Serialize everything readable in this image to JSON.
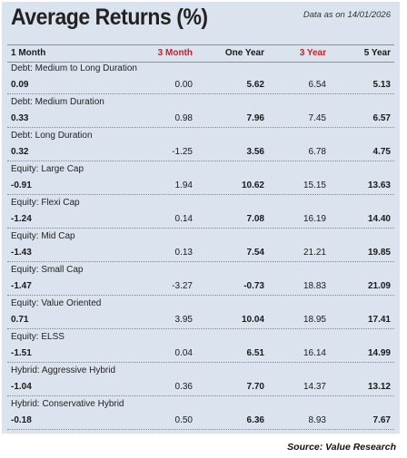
{
  "title": "Average Returns (%)",
  "as_of": "Data as on 14/01/2026",
  "columns": [
    "1 Month",
    "3 Month",
    "One Year",
    "3 Year",
    "5 Year"
  ],
  "rows": [
    {
      "category": "Debt: Medium to Long Duration",
      "values": [
        "0.09",
        "0.00",
        "5.62",
        "6.54",
        "5.13"
      ]
    },
    {
      "category": "Debt: Medium Duration",
      "values": [
        "0.33",
        "0.98",
        "7.96",
        "7.45",
        "6.57"
      ]
    },
    {
      "category": "Debt: Long Duration",
      "values": [
        "0.32",
        "-1.25",
        "3.56",
        "6.78",
        "4.75"
      ]
    },
    {
      "category": "Equity: Large Cap",
      "values": [
        "-0.91",
        "1.94",
        "10.62",
        "15.15",
        "13.63"
      ]
    },
    {
      "category": "Equity: Flexi Cap",
      "values": [
        "-1.24",
        "0.14",
        "7.08",
        "16.19",
        "14.40"
      ]
    },
    {
      "category": "Equity: Mid Cap",
      "values": [
        "-1.43",
        "0.13",
        "7.54",
        "21.21",
        "19.85"
      ]
    },
    {
      "category": "Equity: Small Cap",
      "values": [
        "-1.47",
        "-3.27",
        "-0.73",
        "18.83",
        "21.09"
      ]
    },
    {
      "category": "Equity: Value Oriented",
      "values": [
        "0.71",
        "3.95",
        "10.04",
        "18.95",
        "17.41"
      ]
    },
    {
      "category": "Equity: ELSS",
      "values": [
        "-1.51",
        "0.04",
        "6.51",
        "16.14",
        "14.99"
      ]
    },
    {
      "category": "Hybrid: Aggressive Hybrid",
      "values": [
        "-1.04",
        "0.36",
        "7.70",
        "14.37",
        "13.12"
      ]
    },
    {
      "category": "Hybrid: Conservative Hybrid",
      "values": [
        "-0.18",
        "0.50",
        "6.36",
        "8.93",
        "7.67"
      ]
    }
  ],
  "source": "Source: Value Research",
  "colors": {
    "panel_bg": "#dbe3ef",
    "highlight_red": "#c8202a"
  }
}
